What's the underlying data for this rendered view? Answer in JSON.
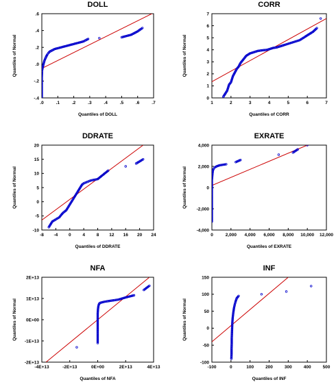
{
  "chart_data": [
    {
      "type": "scatter",
      "title": "DOLL",
      "xlabel": "Quantiles of DOLL",
      "ylabel": "Quantiles of Normal",
      "xlim": [
        0,
        0.7
      ],
      "ylim": [
        -0.4,
        0.6
      ],
      "xticks": [
        0,
        0.1,
        0.2,
        0.3,
        0.4,
        0.5,
        0.6,
        0.7
      ],
      "yticks": [
        -0.4,
        -0.2,
        0,
        0.2,
        0.4,
        0.6
      ],
      "xtick_labels": [
        ".0",
        ".1",
        ".2",
        ".3",
        ".4",
        ".5",
        ".6",
        ".7"
      ],
      "ytick_labels": [
        "-.4",
        "-.2",
        ".0",
        ".2",
        ".4",
        ".6"
      ],
      "reference_line": [
        [
          0,
          -0.05
        ],
        [
          0.7,
          0.61
        ]
      ],
      "points": [
        [
          0,
          -0.39
        ],
        [
          0,
          -0.3
        ],
        [
          0,
          -0.22
        ],
        [
          0,
          -0.15
        ],
        [
          0.001,
          -0.1
        ],
        [
          0.002,
          -0.07
        ],
        [
          0.004,
          -0.05
        ],
        [
          0.006,
          -0.03
        ],
        [
          0.008,
          -0.02
        ],
        [
          0.01,
          0
        ],
        [
          0.013,
          0.02
        ],
        [
          0.016,
          0.04
        ],
        [
          0.02,
          0.06
        ],
        [
          0.025,
          0.08
        ],
        [
          0.03,
          0.1
        ],
        [
          0.036,
          0.12
        ],
        [
          0.042,
          0.135
        ],
        [
          0.05,
          0.15
        ],
        [
          0.06,
          0.16
        ],
        [
          0.07,
          0.17
        ],
        [
          0.08,
          0.18
        ],
        [
          0.1,
          0.19
        ],
        [
          0.12,
          0.2
        ],
        [
          0.14,
          0.21
        ],
        [
          0.16,
          0.22
        ],
        [
          0.18,
          0.23
        ],
        [
          0.2,
          0.24
        ],
        [
          0.22,
          0.25
        ],
        [
          0.24,
          0.26
        ],
        [
          0.26,
          0.27
        ],
        [
          0.28,
          0.29
        ],
        [
          0.29,
          0.3
        ],
        [
          0.36,
          0.31
        ],
        [
          0.5,
          0.32
        ],
        [
          0.52,
          0.33
        ],
        [
          0.56,
          0.35
        ],
        [
          0.6,
          0.39
        ],
        [
          0.63,
          0.43
        ]
      ],
      "point_color": "#0000cc",
      "line_color": "#cc0000"
    },
    {
      "type": "scatter",
      "title": "CORR",
      "xlabel": "Quantiles of CORR",
      "ylabel": "Quantiles of Normal",
      "xlim": [
        1,
        7
      ],
      "ylim": [
        0,
        7
      ],
      "xticks": [
        1,
        2,
        3,
        4,
        5,
        6,
        7
      ],
      "yticks": [
        0,
        1,
        2,
        3,
        4,
        5,
        6,
        7
      ],
      "xtick_labels": [
        "1",
        "2",
        "3",
        "4",
        "5",
        "6",
        "7"
      ],
      "ytick_labels": [
        "0",
        "1",
        "2",
        "3",
        "4",
        "5",
        "6",
        "7"
      ],
      "reference_line": [
        [
          1,
          1.35
        ],
        [
          7,
          6.6
        ]
      ],
      "points": [
        [
          1.6,
          0.1
        ],
        [
          1.8,
          0.6
        ],
        [
          1.9,
          1.1
        ],
        [
          2.0,
          1.3
        ],
        [
          2.1,
          1.8
        ],
        [
          2.2,
          2.1
        ],
        [
          2.3,
          2.4
        ],
        [
          2.4,
          2.6
        ],
        [
          2.5,
          2.9
        ],
        [
          2.6,
          3.1
        ],
        [
          2.7,
          3.3
        ],
        [
          2.8,
          3.5
        ],
        [
          3.0,
          3.7
        ],
        [
          3.2,
          3.8
        ],
        [
          3.4,
          3.9
        ],
        [
          3.6,
          3.95
        ],
        [
          3.9,
          4.0
        ],
        [
          4.0,
          4.05
        ],
        [
          4.2,
          4.15
        ],
        [
          4.4,
          4.2
        ],
        [
          4.6,
          4.3
        ],
        [
          4.8,
          4.4
        ],
        [
          5.2,
          4.6
        ],
        [
          5.6,
          4.8
        ],
        [
          5.8,
          5.0
        ],
        [
          6.0,
          5.2
        ],
        [
          6.3,
          5.5
        ],
        [
          6.5,
          5.8
        ],
        [
          6.7,
          6.6
        ]
      ],
      "point_color": "#0000cc",
      "line_color": "#cc0000"
    },
    {
      "type": "scatter",
      "title": "DDRATE",
      "xlabel": "Quantiles of DDRATE",
      "ylabel": "Quantiles of Normal",
      "xlim": [
        -8,
        24
      ],
      "ylim": [
        -10,
        20
      ],
      "xticks": [
        -8,
        -4,
        0,
        4,
        8,
        12,
        16,
        20,
        24
      ],
      "yticks": [
        -10,
        -5,
        0,
        5,
        10,
        15,
        20
      ],
      "xtick_labels": [
        "-8",
        "-4",
        "0",
        "4",
        "8",
        "12",
        "16",
        "20",
        "24"
      ],
      "ytick_labels": [
        "-10",
        "-5",
        "0",
        "5",
        "10",
        "15",
        "20"
      ],
      "reference_line": [
        [
          -8,
          -6.5
        ],
        [
          21,
          20
        ]
      ],
      "points": [
        [
          -6,
          -9
        ],
        [
          -5,
          -7
        ],
        [
          -3,
          -5.5
        ],
        [
          -2,
          -4
        ],
        [
          -1,
          -3
        ],
        [
          -0.5,
          -2
        ],
        [
          0,
          -1
        ],
        [
          0.5,
          0
        ],
        [
          1,
          1
        ],
        [
          1.5,
          2
        ],
        [
          2,
          3
        ],
        [
          2.5,
          4
        ],
        [
          3,
          5
        ],
        [
          3.5,
          6
        ],
        [
          4,
          6.5
        ],
        [
          5,
          7
        ],
        [
          6,
          7.5
        ],
        [
          8,
          8
        ],
        [
          9,
          9
        ],
        [
          10,
          10
        ],
        [
          11,
          11
        ],
        [
          16,
          12.5
        ],
        [
          19,
          13.5
        ],
        [
          21,
          15
        ]
      ],
      "point_color": "#0000cc",
      "line_color": "#cc0000"
    },
    {
      "type": "scatter",
      "title": "EXRATE",
      "xlabel": "Quantiles of EXRATE",
      "ylabel": "Quantiles of Normal",
      "xlim": [
        0,
        12000
      ],
      "ylim": [
        -4000,
        4000
      ],
      "xticks": [
        0,
        2000,
        4000,
        6000,
        8000,
        10000,
        12000
      ],
      "yticks": [
        -4000,
        -2000,
        0,
        2000,
        4000
      ],
      "xtick_labels": [
        "0",
        "2,000",
        "4,000",
        "6,000",
        "8,000",
        "10,000",
        "12,000"
      ],
      "ytick_labels": [
        "-4,000",
        "-2,000",
        "0",
        "2,000",
        "4,000"
      ],
      "reference_line": [
        [
          0,
          200
        ],
        [
          10000,
          4000
        ]
      ],
      "points": [
        [
          0,
          -3200
        ],
        [
          0,
          -2600
        ],
        [
          0,
          -2000
        ],
        [
          0,
          -1400
        ],
        [
          0,
          -800
        ],
        [
          0,
          -300
        ],
        [
          0,
          200
        ],
        [
          0,
          700
        ],
        [
          50,
          1200
        ],
        [
          100,
          1600
        ],
        [
          200,
          1800
        ],
        [
          300,
          1900
        ],
        [
          500,
          2000
        ],
        [
          800,
          2100
        ],
        [
          1500,
          2200
        ],
        [
          2500,
          2400
        ],
        [
          3000,
          2600
        ],
        [
          7000,
          3100
        ],
        [
          8500,
          3300
        ],
        [
          9000,
          3600
        ],
        [
          10000,
          4000
        ]
      ],
      "point_color": "#0000cc",
      "line_color": "#cc0000"
    },
    {
      "type": "scatter",
      "title": "NFA",
      "xlabel": "Quantiles of NFA",
      "ylabel": "Quantiles of Normal",
      "xlim": [
        -40000000000000,
        40000000000000
      ],
      "ylim": [
        -20000000000000,
        20000000000000
      ],
      "xticks": [
        -40000000000000,
        -20000000000000,
        0,
        20000000000000,
        40000000000000
      ],
      "yticks": [
        -20000000000000,
        -10000000000000,
        0,
        10000000000000,
        20000000000000
      ],
      "xtick_labels": [
        "-4E+13",
        "-2E+13",
        "0E+00",
        "2E+13",
        "4E+13"
      ],
      "ytick_labels": [
        "-2E+13",
        "-1E+13",
        "0E+00",
        "1E+13",
        "2E+13"
      ],
      "reference_line": [
        [
          -37000000000000,
          -20000000000000
        ],
        [
          37000000000000,
          20000000000000
        ]
      ],
      "points": [
        [
          -15000000000000,
          -13000000000000
        ],
        [
          0,
          -11000000000000
        ],
        [
          0,
          -9000000000000
        ],
        [
          0,
          -7000000000000
        ],
        [
          0,
          -5000000000000
        ],
        [
          0,
          -3000000000000
        ],
        [
          0,
          -1000000000000
        ],
        [
          0,
          1000000000000
        ],
        [
          0,
          3000000000000
        ],
        [
          200000000000,
          5000000000000
        ],
        [
          500000000000,
          6500000000000
        ],
        [
          1000000000000,
          7500000000000
        ],
        [
          2000000000000,
          8000000000000
        ],
        [
          5000000000000,
          8500000000000
        ],
        [
          10000000000000,
          9000000000000
        ],
        [
          15000000000000,
          9500000000000
        ],
        [
          20000000000000,
          10500000000000
        ],
        [
          26000000000000,
          11500000000000
        ],
        [
          33000000000000,
          14000000000000
        ],
        [
          37000000000000,
          16000000000000
        ]
      ],
      "point_color": "#0000cc",
      "line_color": "#cc0000"
    },
    {
      "type": "scatter",
      "title": "INF",
      "xlabel": "Quantiles of INF",
      "ylabel": "Quantiles of Normal",
      "xlim": [
        -100,
        500
      ],
      "ylim": [
        -100,
        150
      ],
      "xticks": [
        -100,
        0,
        100,
        200,
        300,
        400,
        500
      ],
      "yticks": [
        -100,
        -50,
        0,
        50,
        100,
        150
      ],
      "xtick_labels": [
        "-100",
        "0",
        "100",
        "200",
        "300",
        "400",
        "500"
      ],
      "ytick_labels": [
        "-100",
        "-50",
        "0",
        "50",
        "100",
        "150"
      ],
      "reference_line": [
        [
          -100,
          -40
        ],
        [
          300,
          150
        ]
      ],
      "points": [
        [
          2,
          -90
        ],
        [
          3,
          -75
        ],
        [
          3,
          -60
        ],
        [
          4,
          -45
        ],
        [
          4,
          -30
        ],
        [
          5,
          -15
        ],
        [
          6,
          0
        ],
        [
          7,
          15
        ],
        [
          9,
          30
        ],
        [
          12,
          45
        ],
        [
          16,
          60
        ],
        [
          20,
          70
        ],
        [
          25,
          80
        ],
        [
          30,
          88
        ],
        [
          40,
          95
        ],
        [
          160,
          100
        ],
        [
          290,
          108
        ],
        [
          420,
          124
        ]
      ],
      "point_color": "#0000cc",
      "line_color": "#cc0000"
    }
  ]
}
